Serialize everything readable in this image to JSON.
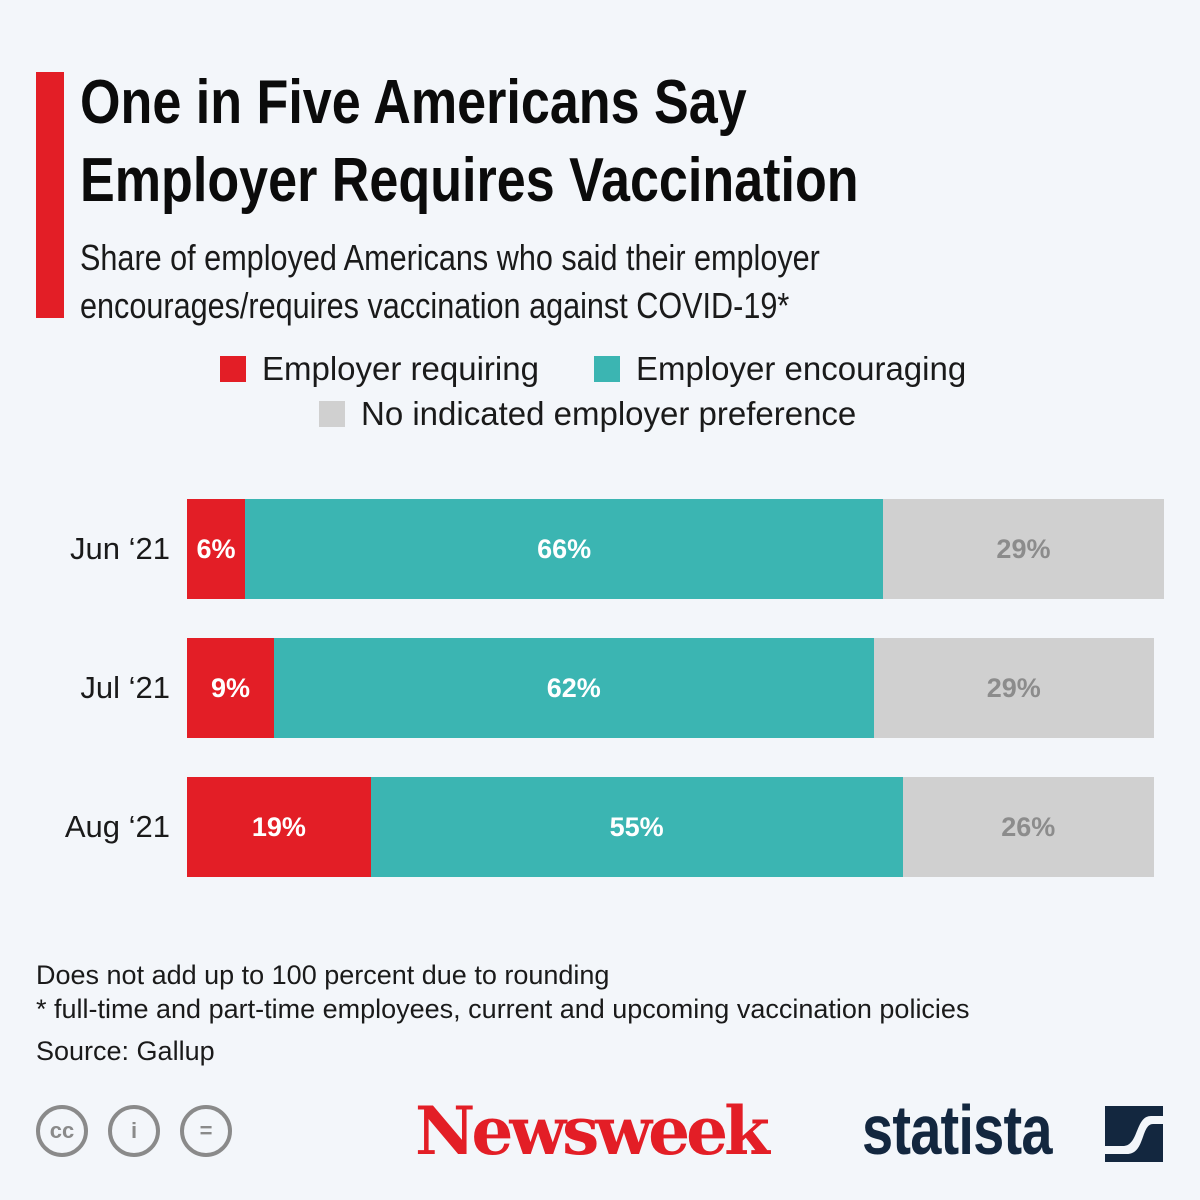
{
  "title_lines": [
    "One in Five Americans Say",
    "Employer Requires Vaccination"
  ],
  "subtitle_lines": [
    "Share of employed Americans who said their employer",
    "encourages/requires vaccination against COVID-19*"
  ],
  "chart_data": {
    "type": "bar",
    "orientation": "horizontal",
    "stacked": true,
    "categories": [
      "Jun ‘21",
      "Jul ‘21",
      "Aug ‘21"
    ],
    "series": [
      {
        "name": "Employer requiring",
        "color": "#e31e26",
        "label_color": "#ffffff",
        "values": [
          6,
          9,
          19
        ]
      },
      {
        "name": "Employer encouraging",
        "color": "#3bb5b2",
        "label_color": "#ffffff",
        "values": [
          66,
          62,
          55
        ]
      },
      {
        "name": "No indicated employer preference",
        "color": "#d0d0d0",
        "label_color": "#8c8c8c",
        "values": [
          29,
          29,
          26
        ]
      }
    ],
    "unit": "%",
    "legend_position": "top"
  },
  "notes": [
    "Does not add up to 100 percent due to rounding",
    "* full-time and part-time employees, current and upcoming vaccination policies",
    "Source: Gallup"
  ],
  "footer": {
    "cc_labels": [
      "cc",
      "i",
      "="
    ],
    "newsweek": "Newsweek",
    "statista": "statista"
  }
}
